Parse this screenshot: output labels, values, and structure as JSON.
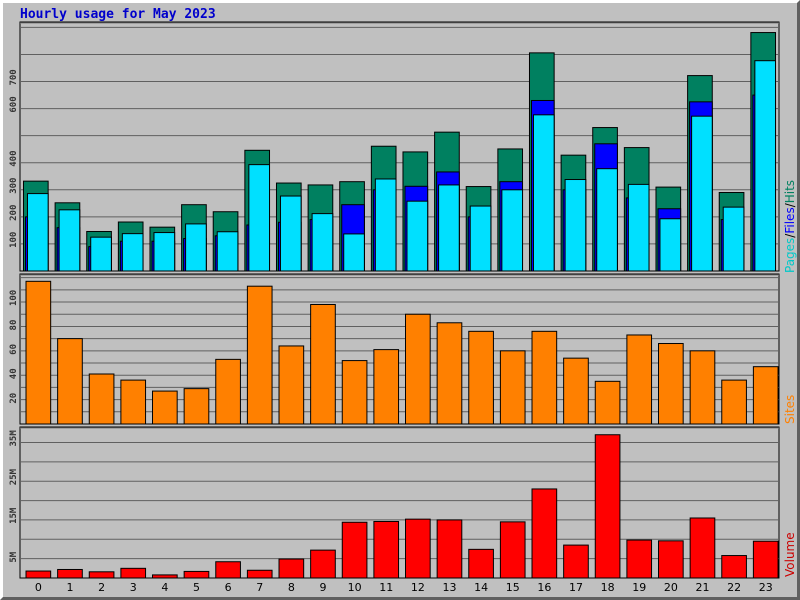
{
  "title": "Hourly usage for May 2023",
  "chart_data": [
    {
      "type": "bar",
      "panel": "pages-files-hits",
      "categories": [
        "0",
        "1",
        "2",
        "3",
        "4",
        "5",
        "6",
        "7",
        "8",
        "9",
        "10",
        "11",
        "12",
        "13",
        "14",
        "15",
        "16",
        "17",
        "18",
        "19",
        "20",
        "21",
        "22",
        "23"
      ],
      "series": [
        {
          "name": "Hits",
          "color": "#008060",
          "values": [
            332,
            252,
            146,
            181,
            162,
            245,
            219,
            446,
            325,
            318,
            330,
            461,
            440,
            513,
            312,
            451,
            806,
            428,
            530,
            456,
            310,
            722,
            290,
            881
          ]
        },
        {
          "name": "Files",
          "color": "#0000ff",
          "values": [
            200,
            160,
            90,
            110,
            110,
            120,
            130,
            170,
            180,
            190,
            245,
            300,
            313,
            366,
            200,
            330,
            630,
            300,
            470,
            270,
            230,
            625,
            190,
            650
          ]
        },
        {
          "name": "Pages",
          "color": "#00e0ff",
          "values": [
            286,
            226,
            125,
            138,
            142,
            174,
            145,
            393,
            277,
            212,
            137,
            340,
            258,
            318,
            240,
            300,
            577,
            338,
            378,
            320,
            193,
            572,
            236,
            777
          ]
        }
      ],
      "ytick_labels": [
        "100",
        "200",
        "300",
        "400",
        "600",
        "700"
      ],
      "legend": [
        "Pages",
        "/",
        "Files",
        "/",
        "Hits"
      ],
      "legend_placement": "right"
    },
    {
      "type": "bar",
      "panel": "sites",
      "categories": [
        "0",
        "1",
        "2",
        "3",
        "4",
        "5",
        "6",
        "7",
        "8",
        "9",
        "10",
        "11",
        "12",
        "13",
        "14",
        "15",
        "16",
        "17",
        "18",
        "19",
        "20",
        "21",
        "22",
        "23"
      ],
      "series": [
        {
          "name": "Sites",
          "color": "#ff8000",
          "values": [
            117,
            70,
            41,
            36,
            27,
            29,
            53,
            113,
            64,
            98,
            52,
            61,
            90,
            83,
            76,
            60,
            76,
            54,
            35,
            73,
            66,
            60,
            36,
            47
          ]
        }
      ],
      "ytick_labels": [
        "20",
        "40",
        "60",
        "80",
        "100"
      ],
      "legend_placement": "right"
    },
    {
      "type": "bar",
      "panel": "volume",
      "categories": [
        "0",
        "1",
        "2",
        "3",
        "4",
        "5",
        "6",
        "7",
        "8",
        "9",
        "10",
        "11",
        "12",
        "13",
        "14",
        "15",
        "16",
        "17",
        "18",
        "19",
        "20",
        "21",
        "22",
        "23"
      ],
      "series": [
        {
          "name": "Volume",
          "color": "#ff0000",
          "values_mb": [
            1.8,
            2.2,
            1.6,
            2.5,
            0.8,
            1.7,
            4.2,
            2.0,
            4.9,
            7.2,
            14.4,
            14.6,
            15.2,
            15.0,
            7.4,
            14.5,
            23.0,
            8.5,
            37.0,
            9.8,
            9.6,
            15.5,
            5.8,
            9.5
          ]
        }
      ],
      "ytick_labels": [
        "5M",
        "15M",
        "25M",
        "35M"
      ],
      "legend_placement": "right"
    }
  ],
  "hour_labels": [
    "0",
    "1",
    "2",
    "3",
    "4",
    "5",
    "6",
    "7",
    "8",
    "9",
    "10",
    "11",
    "12",
    "13",
    "14",
    "15",
    "16",
    "17",
    "18",
    "19",
    "20",
    "21",
    "22",
    "23"
  ],
  "legend_labels": {
    "pages": "Pages",
    "slash": "/",
    "files": "Files",
    "hits": "Hits",
    "sites": "Sites",
    "volume": "Volume"
  },
  "colors": {
    "background": "#c0c0c0",
    "title": "#0000cc",
    "grid": "#606060"
  }
}
